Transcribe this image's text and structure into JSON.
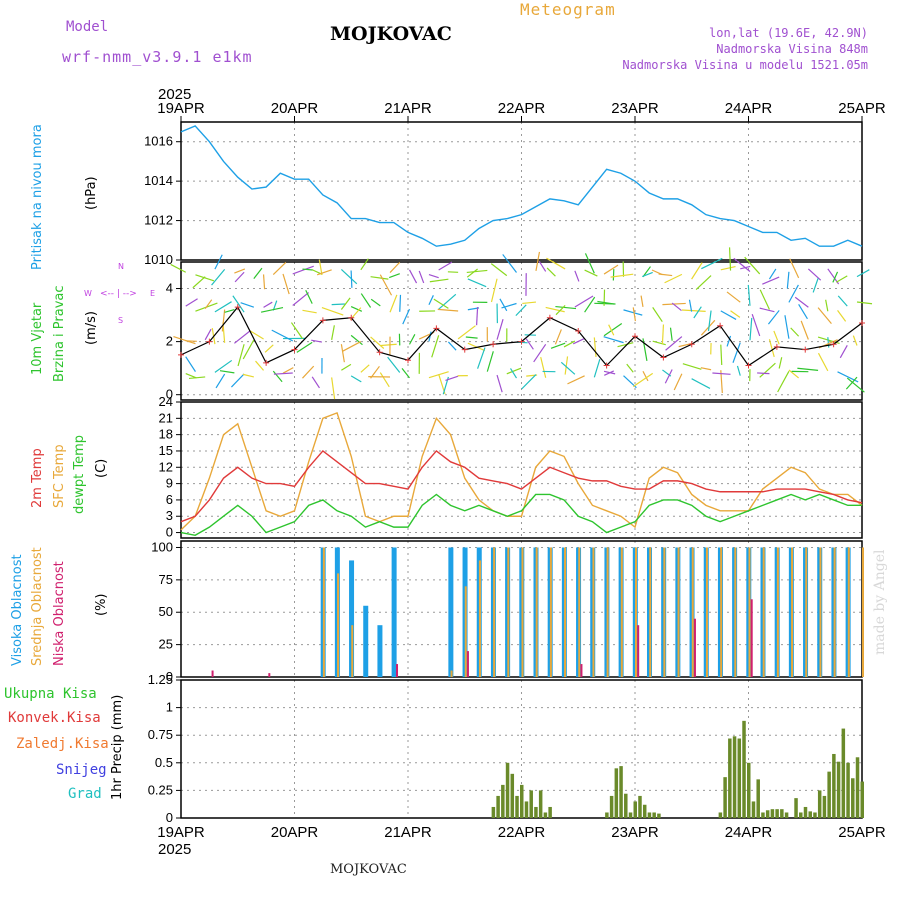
{
  "header": {
    "model_label": "Model",
    "model_name": "wrf-nmm_v3.9.1 e1km",
    "station": "MOJKOVAC",
    "product": "Meteogram",
    "lonlat": "lon,lat (19.6E, 42.9N)",
    "elevation": "Nadmorska Visina 848m",
    "model_elevation": "Nadmorska Visina u modelu 1521.05m",
    "footer_station": "MOJKOVAC",
    "credit": "made by Angel"
  },
  "time_axis": {
    "year": "2025",
    "days": [
      "19APR",
      "20APR",
      "21APR",
      "22APR",
      "23APR",
      "24APR",
      "25APR"
    ]
  },
  "colors": {
    "pressure": "#1ea0e6",
    "temp2m": "#e03a3a",
    "sfc_temp": "#e8a83a",
    "dewpoint": "#2ec42e",
    "high_cloud": "#1ea0e6",
    "mid_cloud": "#e8a83a",
    "low_cloud": "#d0206e",
    "precip_total": "#2ec42e",
    "precip_conv": "#e03a3a",
    "precip_frozen": "#f07a30",
    "snow": "#4040e0",
    "graupel": "#20c0c0",
    "wind_legend": "#c040e0",
    "label_purple": "#a050d0",
    "product_orange": "#e8a83a"
  },
  "panels": {
    "pressure": {
      "label": "Pritisak na nivou mora",
      "unit": "(hPa)",
      "ticks": [
        "1010",
        "1012",
        "1014",
        "1016"
      ]
    },
    "wind": {
      "label1": "10m Vjetar",
      "label2": "Brzina i Pravac",
      "unit": "(m/s)",
      "ticks": [
        "0",
        "2",
        "4"
      ],
      "compass": {
        "n": "N",
        "w": "W",
        "e": "E",
        "s": "S"
      }
    },
    "temp": {
      "label1": "2m Temp",
      "label2": "SFC Temp",
      "label3": "dewpt Temp",
      "unit": "(C)",
      "ticks": [
        "0",
        "3",
        "6",
        "9",
        "12",
        "15",
        "18",
        "21",
        "24"
      ]
    },
    "cloud": {
      "label_high": "Visoka Oblacnost",
      "label_mid": "Srednja Oblacnost",
      "label_low": "Niska Oblacnost",
      "unit": "(%)",
      "ticks": [
        "0",
        "25",
        "50",
        "75",
        "100"
      ]
    },
    "precip": {
      "unit_label": "1hr Precip (mm)",
      "ticks": [
        "0",
        "0.25",
        "0.5",
        "0.75",
        "1",
        "1.25"
      ],
      "legend": [
        "Ukupna Kisa",
        "Konvek.Kisa",
        "Zaledj.Kisa",
        "Snijeg",
        "Grad"
      ]
    }
  },
  "chart_data": [
    {
      "type": "line",
      "title": "",
      "ylabel": "Pritisak na nivou mora (hPa)",
      "ylim": [
        1010,
        1017
      ],
      "grid": true,
      "x_hours": [
        0,
        3,
        6,
        9,
        12,
        15,
        18,
        21,
        24,
        27,
        30,
        33,
        36,
        39,
        42,
        45,
        48,
        51,
        54,
        57,
        60,
        63,
        66,
        69,
        72,
        75,
        78,
        81,
        84,
        87,
        90,
        93,
        96,
        99,
        102,
        105,
        108,
        111,
        114,
        117,
        120,
        123,
        126,
        129,
        132,
        135,
        138,
        141,
        144
      ],
      "series": [
        {
          "values": [
            1016.5,
            1016.8,
            1016.0,
            1015.0,
            1014.2,
            1013.6,
            1013.7,
            1014.4,
            1014.1,
            1014.1,
            1013.3,
            1012.9,
            1012.1,
            1012.1,
            1011.9,
            1011.9,
            1011.4,
            1011.1,
            1010.7,
            1010.8,
            1011.0,
            1011.6,
            1012.0,
            1012.1,
            1012.3,
            1012.7,
            1013.1,
            1013.0,
            1012.8,
            1013.7,
            1014.6,
            1014.4,
            1014.0,
            1013.4,
            1013.1,
            1013.1,
            1012.8,
            1012.3,
            1012.1,
            1012.0,
            1011.7,
            1011.4,
            1011.4,
            1011.0,
            1011.1,
            1010.7,
            1010.7,
            1011.0,
            1010.7
          ]
        }
      ]
    },
    {
      "type": "line",
      "title": "",
      "ylabel": "10m Vjetar Brzina i Pravac (m/s)",
      "ylim": [
        -0.2,
        5
      ],
      "grid": true,
      "x_hours": [
        0,
        6,
        12,
        18,
        24,
        30,
        36,
        42,
        48,
        54,
        60,
        66,
        72,
        78,
        84,
        90,
        96,
        102,
        108,
        114,
        120,
        126,
        132,
        138,
        144
      ],
      "series": [
        {
          "values": [
            1.5,
            2.0,
            3.3,
            1.2,
            1.7,
            2.8,
            2.9,
            1.6,
            1.3,
            2.5,
            1.7,
            1.9,
            2.0,
            2.9,
            2.4,
            1.1,
            2.2,
            1.4,
            1.9,
            2.6,
            1.1,
            1.8,
            1.7,
            1.9,
            2.7
          ]
        }
      ]
    },
    {
      "type": "line",
      "title": "",
      "ylabel": "Temp (C)",
      "ylim": [
        -1,
        24
      ],
      "grid": true,
      "x_hours": [
        0,
        3,
        6,
        9,
        12,
        15,
        18,
        21,
        24,
        27,
        30,
        33,
        36,
        39,
        42,
        45,
        48,
        51,
        54,
        57,
        60,
        63,
        66,
        69,
        72,
        75,
        78,
        81,
        84,
        87,
        90,
        93,
        96,
        99,
        102,
        105,
        108,
        111,
        114,
        117,
        120,
        123,
        126,
        129,
        132,
        135,
        138,
        141,
        144
      ],
      "series": [
        {
          "name": "2m Temp",
          "values": [
            2,
            3,
            6,
            10,
            12,
            10,
            9,
            9,
            8.5,
            12,
            15,
            13,
            11,
            9,
            9,
            8.5,
            8,
            12,
            15,
            13,
            12,
            10,
            9.5,
            9,
            8,
            10,
            12,
            11,
            10,
            9.5,
            9.5,
            8.5,
            8,
            8,
            9.5,
            9.5,
            9,
            8,
            7.5,
            7.5,
            7.5,
            7.5,
            8,
            8,
            8,
            7.5,
            7,
            6,
            5.5
          ]
        },
        {
          "name": "SFC Temp",
          "values": [
            0.5,
            3,
            10,
            18,
            20,
            12,
            4,
            3,
            4,
            13,
            21,
            22,
            14,
            3,
            2,
            3,
            3,
            14,
            21,
            18,
            10,
            6,
            4,
            3,
            3,
            12,
            15,
            14,
            9,
            5,
            4,
            3,
            1,
            10,
            12,
            11,
            7,
            5,
            4,
            4,
            4,
            8,
            10,
            12,
            11,
            8,
            7,
            7,
            5
          ]
        },
        {
          "name": "dewpt Temp",
          "values": [
            0,
            -0.5,
            1,
            3,
            5,
            3,
            0,
            1,
            2,
            5,
            6,
            4,
            3,
            1,
            2,
            1,
            1,
            5,
            7,
            5,
            4,
            5,
            4,
            3,
            4,
            7,
            7,
            6,
            3,
            2,
            0,
            1,
            2,
            5,
            6,
            6,
            5,
            3,
            2,
            3,
            4,
            5,
            6,
            7,
            6,
            7,
            6,
            5,
            5
          ]
        }
      ]
    },
    {
      "type": "bar",
      "title": "",
      "ylabel": "Oblacnost (%)",
      "ylim": [
        0,
        100
      ],
      "grid": true,
      "x_hours": [
        0,
        3,
        6,
        9,
        12,
        15,
        18,
        21,
        24,
        27,
        30,
        33,
        36,
        39,
        42,
        45,
        48,
        51,
        54,
        57,
        60,
        63,
        66,
        69,
        72,
        75,
        78,
        81,
        84,
        87,
        90,
        93,
        96,
        99,
        102,
        105,
        108,
        111,
        114,
        117,
        120,
        123,
        126,
        129,
        132,
        135,
        138,
        141,
        144
      ],
      "series": [
        {
          "name": "Visoka Oblacnost",
          "values": [
            0,
            0,
            0,
            0,
            0,
            0,
            0,
            0,
            0,
            0,
            100,
            100,
            90,
            55,
            40,
            100,
            0,
            0,
            0,
            100,
            100,
            100,
            100,
            100,
            100,
            100,
            100,
            100,
            100,
            100,
            100,
            100,
            100,
            100,
            100,
            100,
            100,
            100,
            100,
            100,
            100,
            100,
            100,
            100,
            100,
            100,
            100,
            100,
            0
          ]
        },
        {
          "name": "Srednja Oblacnost",
          "values": [
            0,
            0,
            0,
            0,
            0,
            0,
            0,
            0,
            0,
            0,
            100,
            80,
            40,
            0,
            0,
            0,
            0,
            0,
            0,
            5,
            70,
            90,
            100,
            100,
            100,
            100,
            100,
            100,
            100,
            100,
            100,
            100,
            100,
            100,
            100,
            100,
            100,
            100,
            100,
            100,
            100,
            100,
            100,
            100,
            100,
            100,
            100,
            100,
            100
          ]
        },
        {
          "name": "Niska Oblacnost",
          "values": [
            0,
            0,
            5,
            0,
            0,
            0,
            3,
            0,
            0,
            0,
            0,
            0,
            0,
            0,
            0,
            10,
            0,
            0,
            0,
            0,
            20,
            0,
            0,
            0,
            0,
            0,
            0,
            0,
            10,
            0,
            0,
            0,
            40,
            0,
            0,
            0,
            45,
            0,
            0,
            0,
            60,
            0,
            0,
            0,
            0,
            0,
            0,
            0,
            0
          ]
        }
      ]
    },
    {
      "type": "bar",
      "title": "",
      "ylabel": "1hr Precip (mm)",
      "ylim": [
        0,
        1.25
      ],
      "grid": true,
      "x_hours": [
        66,
        67,
        68,
        69,
        70,
        71,
        72,
        73,
        74,
        75,
        76,
        77,
        78,
        79,
        80,
        81,
        90,
        91,
        92,
        93,
        94,
        95,
        96,
        97,
        98,
        99,
        100,
        101,
        102,
        103,
        104,
        114,
        115,
        116,
        117,
        118,
        119,
        120,
        121,
        122,
        123,
        124,
        125,
        126,
        127,
        128,
        129,
        130,
        131,
        132,
        133,
        134,
        135,
        136,
        137,
        138,
        139,
        140,
        141,
        142,
        143,
        144
      ],
      "series": [
        {
          "name": "Ukupna Kisa",
          "values": [
            0.1,
            0.2,
            0.3,
            0.5,
            0.4,
            0.2,
            0.3,
            0.15,
            0.25,
            0.1,
            0.25,
            0.05,
            0.1,
            0,
            0,
            0,
            0.05,
            0.2,
            0.45,
            0.47,
            0.22,
            0.05,
            0.15,
            0.2,
            0.12,
            0.05,
            0.05,
            0.04,
            0,
            0,
            0,
            0.05,
            0.37,
            0.72,
            0.74,
            0.72,
            0.88,
            0.5,
            0.15,
            0.35,
            0.05,
            0.07,
            0.08,
            0.08,
            0.08,
            0.05,
            0,
            0.18,
            0.05,
            0.1,
            0.06,
            0.05,
            0.25,
            0.2,
            0.42,
            0.58,
            0.51,
            0.81,
            0.5,
            0.36,
            0.55,
            0.33
          ]
        },
        {
          "name": "Konvek.Kisa",
          "values": [
            0,
            0,
            0,
            0,
            0,
            0,
            0,
            0,
            0,
            0,
            0,
            0,
            0,
            0,
            0,
            0,
            0,
            0,
            0,
            0,
            0,
            0,
            0,
            0,
            0,
            0,
            0,
            0,
            0,
            0,
            0,
            0,
            0,
            0,
            0,
            0,
            0,
            0,
            0,
            0,
            0,
            0,
            0,
            0,
            0,
            0,
            0,
            0,
            0,
            0,
            0,
            0,
            0,
            0,
            0,
            0,
            0,
            0,
            0,
            0,
            0,
            0
          ]
        },
        {
          "name": "Zaledj.Kisa",
          "values": [
            0,
            0,
            0,
            0,
            0,
            0,
            0,
            0,
            0,
            0,
            0,
            0,
            0,
            0,
            0,
            0,
            0,
            0,
            0,
            0,
            0,
            0,
            0,
            0,
            0,
            0,
            0,
            0,
            0,
            0,
            0,
            0,
            0,
            0,
            0,
            0,
            0,
            0,
            0,
            0,
            0,
            0,
            0,
            0,
            0,
            0,
            0,
            0,
            0,
            0,
            0,
            0,
            0,
            0,
            0,
            0,
            0,
            0,
            0,
            0,
            0,
            0
          ]
        },
        {
          "name": "Snijeg",
          "values": [
            0,
            0,
            0,
            0,
            0,
            0,
            0,
            0,
            0,
            0,
            0,
            0,
            0,
            0,
            0,
            0,
            0,
            0,
            0,
            0,
            0,
            0,
            0,
            0,
            0,
            0,
            0,
            0,
            0,
            0,
            0,
            0,
            0,
            0,
            0,
            0,
            0,
            0,
            0,
            0,
            0,
            0,
            0,
            0,
            0,
            0,
            0,
            0,
            0,
            0,
            0,
            0,
            0,
            0,
            0,
            0,
            0,
            0,
            0,
            0,
            0,
            0
          ]
        },
        {
          "name": "Grad",
          "values": [
            0,
            0,
            0,
            0,
            0,
            0,
            0,
            0,
            0,
            0,
            0,
            0,
            0,
            0,
            0,
            0,
            0,
            0,
            0,
            0,
            0,
            0,
            0,
            0,
            0,
            0,
            0,
            0,
            0,
            0,
            0,
            0,
            0,
            0,
            0,
            0,
            0,
            0,
            0,
            0,
            0,
            0,
            0,
            0,
            0,
            0,
            0,
            0,
            0,
            0,
            0,
            0,
            0,
            0,
            0,
            0,
            0,
            0,
            0,
            0,
            0,
            0
          ]
        }
      ]
    }
  ]
}
